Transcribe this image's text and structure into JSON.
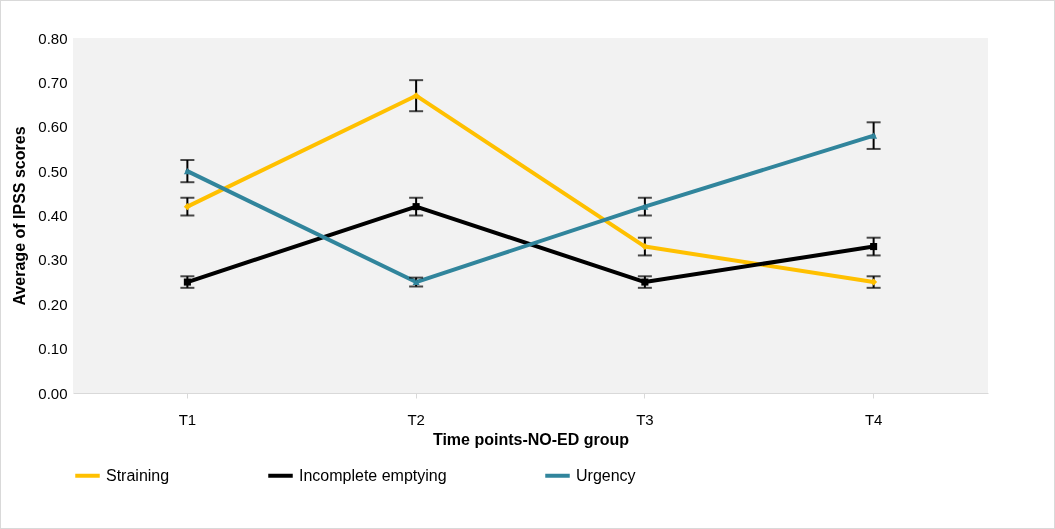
{
  "chart_data": {
    "type": "line",
    "xlabel": "Time points-NO-ED group",
    "ylabel": "Average of IPSS scores",
    "categories": [
      "T1",
      "T2",
      "T3",
      "T4"
    ],
    "series": [
      {
        "name": "Straining",
        "color": "#ffc000",
        "marker": "diamond",
        "values": [
          0.42,
          0.67,
          0.33,
          0.25
        ],
        "errors": [
          0.02,
          0.035,
          0.02,
          0.013
        ]
      },
      {
        "name": "Incomplete emptying",
        "color": "#000000",
        "marker": "square",
        "values": [
          0.25,
          0.42,
          0.25,
          0.33
        ],
        "errors": [
          0.013,
          0.02,
          0.013,
          0.02
        ]
      },
      {
        "name": "Urgency",
        "color": "#31859c",
        "marker": "triangle",
        "values": [
          0.5,
          0.25,
          0.42,
          0.58
        ],
        "errors": [
          0.025,
          0.01,
          0.02,
          0.03
        ]
      }
    ],
    "ylim": [
      0,
      0.8
    ],
    "yticks": [
      {
        "value": 0,
        "label": "0.00"
      },
      {
        "value": 0.1,
        "label": "0.10"
      },
      {
        "value": 0.2,
        "label": "0.20"
      },
      {
        "value": 0.3,
        "label": "0.30"
      },
      {
        "value": 0.4,
        "label": "0.40"
      },
      {
        "value": 0.5,
        "label": "0.50"
      },
      {
        "value": 0.6,
        "label": "0.60"
      },
      {
        "value": 0.7,
        "label": "0.70"
      },
      {
        "value": 0.8,
        "label": "0.80"
      }
    ],
    "grid": false,
    "legend": "bottom",
    "line_style": "solid"
  }
}
